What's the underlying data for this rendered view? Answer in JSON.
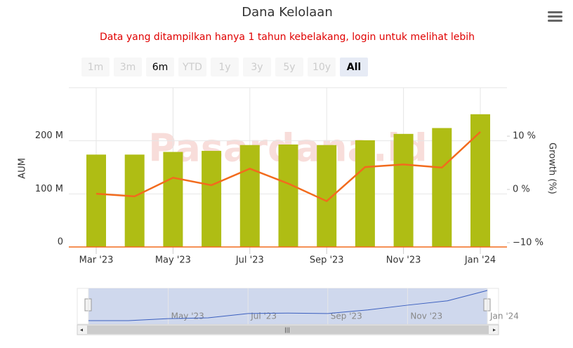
{
  "chart_data": {
    "type": "bar-line",
    "title": "Dana Kelolaan",
    "subtitle": "Data yang ditampilkan hanya 1 tahun kebelakang, login untuk melihat lebih",
    "watermark": "Pasardana.id",
    "range_selector": [
      {
        "label": "1m",
        "enabled": false
      },
      {
        "label": "3m",
        "enabled": false
      },
      {
        "label": "6m",
        "enabled": true
      },
      {
        "label": "YTD",
        "enabled": false
      },
      {
        "label": "1y",
        "enabled": false
      },
      {
        "label": "3y",
        "enabled": false
      },
      {
        "label": "5y",
        "enabled": false
      },
      {
        "label": "10y",
        "enabled": false
      },
      {
        "label": "All",
        "enabled": true,
        "selected": true
      }
    ],
    "y_label": "AUM",
    "y2_label": "Growth (%)",
    "categories": [
      "Mar '23",
      null,
      "May '23",
      null,
      "Jul '23",
      null,
      "Sep '23",
      null,
      "Nov '23",
      null,
      "Jan '24"
    ],
    "series": [
      {
        "name": "AUM",
        "type": "bar",
        "color": "#afbd14",
        "values": [
          174,
          174,
          179,
          181,
          192,
          193,
          192,
          201,
          213,
          224,
          250
        ]
      },
      {
        "name": "Growth",
        "type": "line",
        "axis": "y2",
        "color": "#f26b1d",
        "values": [
          -0.8,
          -1.3,
          2.2,
          0.8,
          3.9,
          1.1,
          -2.2,
          4.2,
          4.7,
          4.1,
          10.8
        ]
      }
    ],
    "ylim": [
      0,
      300
    ],
    "yticks": [
      {
        "value": 0,
        "label": "0"
      },
      {
        "value": 100,
        "label": "100 M"
      },
      {
        "value": 200,
        "label": "200 M"
      }
    ],
    "y2lim": [
      -10.8,
      19.1
    ],
    "y2ticks": [
      {
        "value": -10,
        "label": "−10 %"
      },
      {
        "value": 0,
        "label": "0 %"
      },
      {
        "value": 10,
        "label": "10 %"
      }
    ],
    "grid": true
  }
}
